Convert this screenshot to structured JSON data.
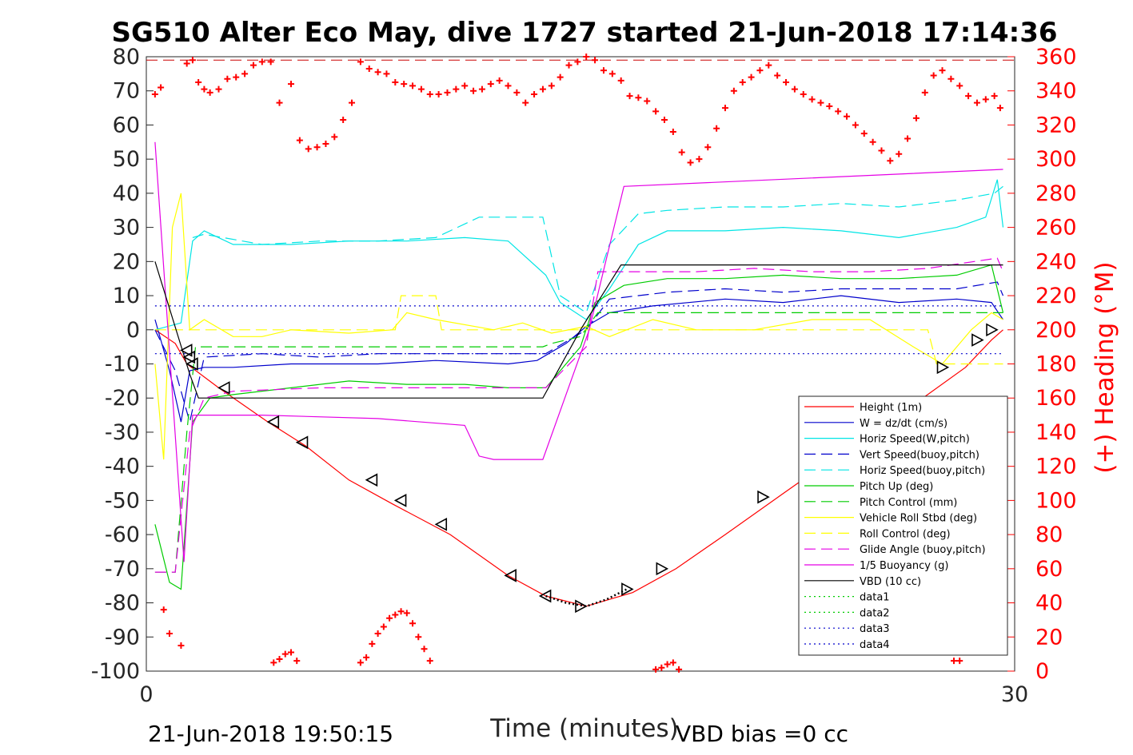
{
  "chart_data": {
    "type": "line",
    "title": "SG510 Alter Eco May, dive 1727 started 21-Jun-2018 17:14:36",
    "xlabel": "Time (minutes)",
    "ylabel_right": "(+) Heading (°M)",
    "xlim": [
      0,
      30
    ],
    "ylim": [
      -100,
      80
    ],
    "ylim_right": [
      0,
      360
    ],
    "x_ticks": [
      "0",
      "30"
    ],
    "y_ticks": [
      "80",
      "70",
      "60",
      "50",
      "40",
      "30",
      "20",
      "10",
      "0",
      "-10",
      "-20",
      "-30",
      "-40",
      "-50",
      "-60",
      "-70",
      "-80",
      "-90",
      "-100"
    ],
    "y_ticks_right": [
      "360",
      "340",
      "320",
      "300",
      "280",
      "260",
      "240",
      "220",
      "200",
      "180",
      "160",
      "140",
      "120",
      "100",
      "80",
      "60",
      "40",
      "20",
      "0"
    ],
    "footer_left": "21-Jun-2018 19:50:15",
    "footer_right": "VBD bias =0 cc",
    "legend_position": "lower-right",
    "series": [
      {
        "name": "Height (1m)",
        "color": "#ff0000",
        "style": "solid",
        "x": [
          0.3,
          1.0,
          1.4,
          2.5,
          4.2,
          5.5,
          7.0,
          8.5,
          10.5,
          12.5,
          13.8,
          15.2,
          16.8,
          18.3,
          20.0,
          22.0,
          24.5,
          26.5,
          28.3,
          29.2,
          29.6
        ],
        "y": [
          0,
          -4,
          -10,
          -17,
          -27,
          -34,
          -44,
          -51,
          -60,
          -72,
          -78,
          -81,
          -77,
          -70,
          -60,
          -48,
          -33,
          -22,
          -11,
          -3,
          0
        ]
      },
      {
        "name": "W = dz/dt (cm/s)",
        "color": "#0000cc",
        "style": "solid",
        "x": [
          0.3,
          0.8,
          1.2,
          1.5,
          2.0,
          3.0,
          5.0,
          8.0,
          10.0,
          12.5,
          13.5,
          14.5,
          15.2,
          16.0,
          17.5,
          20.0,
          22.0,
          24.0,
          26.0,
          28.0,
          29.2,
          29.6
        ],
        "y": [
          3,
          -12,
          -27,
          -12,
          -11,
          -11,
          -10,
          -10,
          -9,
          -10,
          -9,
          -4,
          1,
          5,
          7,
          9,
          8,
          10,
          8,
          9,
          8,
          3
        ]
      },
      {
        "name": "Horiz Speed(W,pitch)",
        "color": "#00e5e5",
        "style": "solid",
        "x": [
          0.3,
          1.2,
          1.6,
          2.0,
          3.0,
          5.0,
          7.0,
          9.0,
          11.0,
          12.5,
          13.8,
          14.3,
          15.2,
          16.0,
          17.0,
          18.0,
          20.0,
          22.0,
          24.0,
          26.0,
          28.0,
          29.0,
          29.4,
          29.6
        ],
        "y": [
          0,
          2,
          26,
          29,
          25,
          25,
          26,
          26,
          27,
          26,
          16,
          8,
          3,
          12,
          25,
          29,
          29,
          30,
          29,
          27,
          30,
          33,
          44,
          30
        ]
      },
      {
        "name": "Vert Speed(buoy,pitch)",
        "color": "#0000cc",
        "style": "dashed",
        "x": [
          0.3,
          1.0,
          1.5,
          2.0,
          4.0,
          6.0,
          8.0,
          10.0,
          12.5,
          13.8,
          15.2,
          16.0,
          18.0,
          20.0,
          22.0,
          24.0,
          26.0,
          28.0,
          29.4,
          29.6
        ],
        "y": [
          0,
          -12,
          -27,
          -8,
          -7,
          -8,
          -7,
          -7,
          -7,
          -7,
          0,
          9,
          11,
          12,
          11,
          12,
          12,
          12,
          14,
          10
        ]
      },
      {
        "name": "Horiz Speed(buoy,pitch)",
        "color": "#00e5e5",
        "style": "dashed",
        "x": [
          1.6,
          2.0,
          4.0,
          6.0,
          8.0,
          10.0,
          11.5,
          12.5,
          13.7,
          14.3,
          15.2,
          16.0,
          17.0,
          18.0,
          20.0,
          22.0,
          24.0,
          26.0,
          28.0,
          29.3,
          29.6
        ],
        "y": [
          27,
          28,
          25,
          26,
          26,
          27,
          33,
          33,
          33,
          10,
          5,
          25,
          34,
          35,
          36,
          36,
          37,
          36,
          38,
          40,
          42
        ]
      },
      {
        "name": "Pitch Up (deg)",
        "color": "#00cc00",
        "style": "solid",
        "x": [
          0.3,
          0.8,
          1.2,
          1.6,
          2.2,
          3.0,
          5.0,
          7.0,
          9.0,
          11.0,
          12.5,
          13.8,
          15.0,
          15.5,
          16.5,
          18.0,
          20.0,
          22.0,
          24.0,
          26.0,
          28.0,
          29.2,
          29.6
        ],
        "y": [
          -57,
          -74,
          -76,
          -27,
          -20,
          -19,
          -17,
          -15,
          -16,
          -16,
          -17,
          -17,
          -5,
          8,
          13,
          15,
          15,
          16,
          15,
          15,
          16,
          19,
          5
        ]
      },
      {
        "name": "Pitch Control (mm)",
        "color": "#00cc00",
        "style": "dashed",
        "x": [
          0.3,
          1.0,
          1.4,
          1.7,
          5.0,
          10.0,
          13.7,
          14.0,
          15.0,
          15.6,
          20.0,
          25.0,
          29.6
        ],
        "y": [
          -71,
          -71,
          -30,
          -5,
          -5,
          -5,
          -5,
          -4,
          -2,
          5,
          5,
          5,
          5
        ]
      },
      {
        "name": "Vehicle Roll Stbd (deg)",
        "color": "#ffff00",
        "style": "solid",
        "x": [
          0.3,
          0.6,
          0.9,
          1.2,
          1.5,
          2.0,
          3.0,
          4.0,
          5.0,
          7.0,
          8.5,
          9.0,
          10.0,
          12.0,
          13.0,
          14.0,
          15.2,
          16.0,
          17.5,
          19.0,
          21.0,
          23.0,
          25.0,
          26.5,
          27.5,
          28.5,
          29.2,
          29.6
        ],
        "y": [
          -10,
          -38,
          30,
          40,
          0,
          3,
          -2,
          -2,
          0,
          -1,
          0,
          5,
          3,
          0,
          2,
          -1,
          1,
          -2,
          3,
          0,
          0,
          3,
          3,
          -5,
          -10,
          0,
          5,
          3
        ]
      },
      {
        "name": "Roll Control (deg)",
        "color": "#ffff00",
        "style": "dashed",
        "x": [
          0.3,
          1.0,
          1.5,
          5.0,
          8.6,
          8.8,
          10.0,
          10.2,
          15.0,
          20.0,
          25.0,
          27.0,
          27.3,
          29.6
        ],
        "y": [
          0,
          0,
          0,
          0,
          0,
          10,
          10,
          0,
          0,
          0,
          0,
          0,
          -10,
          -10
        ]
      },
      {
        "name": "Glide Angle (buoy,pitch)",
        "color": "#e500e5",
        "style": "dashed",
        "x": [
          0.3,
          1.0,
          1.5,
          2.0,
          3.0,
          6.0,
          9.0,
          12.0,
          13.8,
          15.2,
          15.6,
          17.0,
          19.0,
          21.0,
          23.0,
          25.0,
          27.0,
          29.4,
          29.6
        ],
        "y": [
          -71,
          -71,
          -30,
          -20,
          -18,
          -17,
          -17,
          -17,
          -17,
          -5,
          17,
          17,
          17,
          18,
          17,
          17,
          18,
          21,
          17
        ]
      },
      {
        "name": "1/5 Buoyancy (g)",
        "color": "#e500e5",
        "style": "solid",
        "x": [
          0.3,
          1.3,
          1.6,
          4.0,
          8.0,
          11.0,
          11.5,
          12.0,
          13.7,
          15.3,
          16.5,
          29.6
        ],
        "y": [
          55,
          -68,
          -25,
          -25,
          -26,
          -28,
          -37,
          -38,
          -38,
          0,
          42,
          47
        ]
      },
      {
        "name": "VBD (10 cc)",
        "color": "#000000",
        "style": "solid",
        "x": [
          0.3,
          1.5,
          1.8,
          13.7,
          15.0,
          16.4,
          29.6
        ],
        "y": [
          20,
          -13,
          -20,
          -20,
          0,
          19,
          19
        ]
      },
      {
        "name": "data1",
        "color": "#00cc00",
        "style": "dotted",
        "x": [],
        "y": []
      },
      {
        "name": "data2",
        "color": "#00cc00",
        "style": "dotted",
        "x": [],
        "y": []
      },
      {
        "name": "data3",
        "color": "#0000cc",
        "style": "dotted",
        "x": [
          0.3,
          29.6
        ],
        "y": [
          7,
          7
        ]
      },
      {
        "name": "data4",
        "color": "#0000cc",
        "style": "dotted",
        "x": [
          0.3,
          29.6
        ],
        "y": [
          -7,
          -7
        ]
      }
    ],
    "reference_line": {
      "color": "#cc0000",
      "style": "dashed",
      "y": 79
    },
    "triangle_markers": {
      "color": "#000000",
      "left_x": [
        1.4,
        1.5,
        1.6,
        2.7,
        4.4,
        5.4,
        7.8,
        8.8,
        10.2,
        12.6,
        13.8
      ],
      "left_y": [
        -6,
        -8,
        -10,
        -17,
        -27,
        -33,
        -44,
        -50,
        -57,
        -72,
        -78
      ],
      "right_x": [
        15.0,
        16.6,
        17.8,
        21.3,
        27.5,
        28.7,
        29.2
      ],
      "right_y": [
        -81,
        -76,
        -70,
        -49,
        -11,
        -3,
        0
      ]
    },
    "dotted_track": {
      "color": "#000000",
      "x": [
        13.8,
        14.5,
        15.2,
        15.9,
        16.6
      ],
      "y": [
        -78,
        -80,
        -81,
        -79,
        -76
      ]
    },
    "heading": {
      "color": "#ff0000",
      "marker": "+",
      "axis": "right",
      "x": [
        0.3,
        0.5,
        1.4,
        1.6,
        1.8,
        2.0,
        2.2,
        2.5,
        2.8,
        3.1,
        3.4,
        3.7,
        4.0,
        4.3,
        4.6,
        5.0,
        5.3,
        5.6,
        5.9,
        6.2,
        6.5,
        6.8,
        7.1,
        7.4,
        7.7,
        8.0,
        8.3,
        8.6,
        8.9,
        9.2,
        9.5,
        9.8,
        10.1,
        10.4,
        10.7,
        11.0,
        11.3,
        11.6,
        11.9,
        12.2,
        12.5,
        12.8,
        13.1,
        13.4,
        13.7,
        14.0,
        14.3,
        14.6,
        14.9,
        15.2,
        15.5,
        15.8,
        16.1,
        16.4,
        16.7,
        17.0,
        17.3,
        17.6,
        17.9,
        18.2,
        18.5,
        18.8,
        19.1,
        19.4,
        19.7,
        20.0,
        20.3,
        20.6,
        20.9,
        21.2,
        21.5,
        21.8,
        22.1,
        22.4,
        22.7,
        23.0,
        23.3,
        23.6,
        23.9,
        24.2,
        24.5,
        24.8,
        25.1,
        25.4,
        25.7,
        26.0,
        26.3,
        26.6,
        26.9,
        27.2,
        27.5,
        27.8,
        28.1,
        28.4,
        28.7,
        29.0,
        29.3,
        29.5
      ],
      "y": [
        338,
        342,
        356,
        358,
        345,
        341,
        339,
        341,
        347,
        348,
        350,
        355,
        357,
        357,
        333,
        344,
        311,
        306,
        307,
        309,
        313,
        323,
        333,
        357,
        353,
        351,
        350,
        345,
        344,
        343,
        341,
        338,
        338,
        339,
        341,
        343,
        340,
        341,
        344,
        346,
        343,
        339,
        333,
        338,
        341,
        343,
        348,
        355,
        357,
        360,
        358,
        352,
        350,
        346,
        337,
        336,
        334,
        328,
        323,
        316,
        304,
        298,
        300,
        307,
        318,
        330,
        340,
        345,
        348,
        352,
        355,
        349,
        345,
        341,
        338,
        335,
        333,
        331,
        328,
        325,
        320,
        315,
        310,
        305,
        299,
        303,
        312,
        324,
        339,
        349,
        352,
        347,
        343,
        337,
        333,
        335,
        337,
        330
      ],
      "y_wrap_low_x": [
        0.6,
        0.8,
        1.2,
        4.4,
        4.6,
        4.8,
        5.0,
        5.2,
        7.4,
        7.6,
        7.8,
        8.0,
        8.2,
        8.4,
        8.6,
        8.8,
        9.0,
        9.2,
        9.4,
        9.6,
        9.8,
        17.6,
        17.8,
        18.0,
        18.2,
        18.4,
        27.9,
        28.1
      ],
      "y_wrap_low_y": [
        36,
        22,
        15,
        5,
        7,
        10,
        11,
        6,
        5,
        8,
        16,
        22,
        26,
        31,
        33,
        35,
        34,
        28,
        20,
        13,
        6,
        1,
        2,
        4,
        5,
        1,
        6,
        6
      ]
    }
  }
}
